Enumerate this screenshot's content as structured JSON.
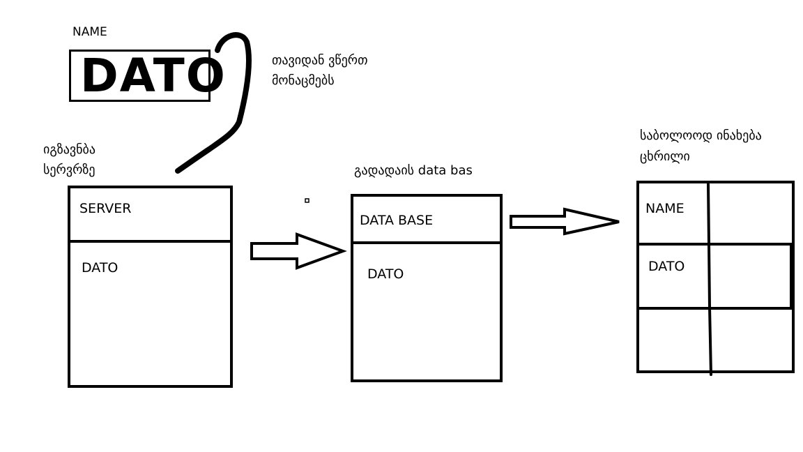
{
  "form": {
    "name_label": "NAME",
    "name_value": "DATO",
    "enter_note_line1": "თავიდან ვწერთ",
    "enter_note_line2": "მონაცმებს"
  },
  "server": {
    "note_line1": "იგზავნბა",
    "note_line2": "სერვრზე",
    "header": "SERVER",
    "value": "DATO"
  },
  "database": {
    "note": "გადადაის data bas",
    "header": "DATA BASE",
    "value": "DATO"
  },
  "table": {
    "note_line1": "საბოლოოდ ინახება",
    "note_line2": "ცხრილი",
    "rows": [
      [
        "NAME",
        ""
      ],
      [
        "DATO",
        ""
      ],
      [
        "",
        ""
      ]
    ]
  }
}
